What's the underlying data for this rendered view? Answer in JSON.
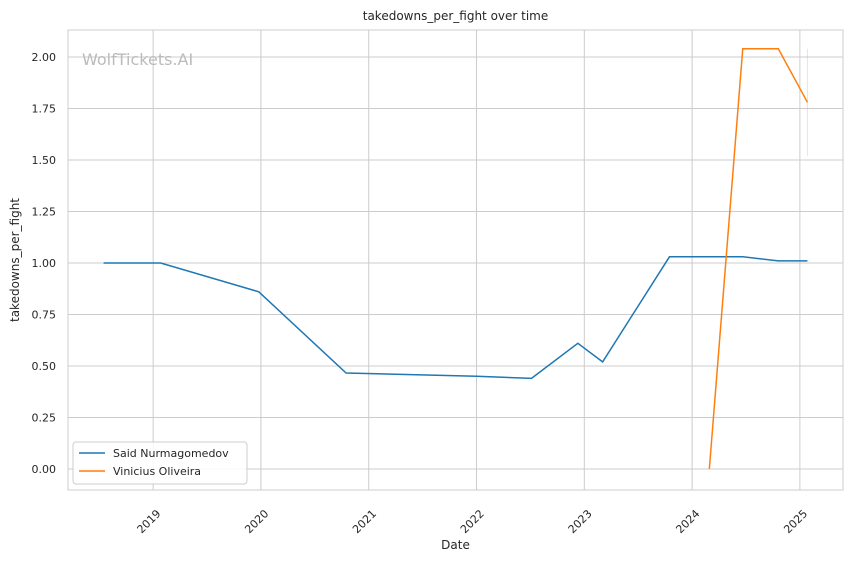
{
  "chart_data": {
    "type": "line",
    "title": "takedowns_per_fight over time",
    "xlabel": "Date",
    "ylabel": "takedowns_per_fight",
    "watermark": "WolfTickets.AI",
    "xlim": [
      2018.21,
      2025.4
    ],
    "ylim": [
      -0.102,
      2.131
    ],
    "grid": true,
    "legend_position": "lower-left",
    "x_ticks": [
      2019,
      2020,
      2021,
      2022,
      2023,
      2024,
      2025
    ],
    "x_tick_labels": [
      "2019",
      "2020",
      "2021",
      "2022",
      "2023",
      "2024",
      "2025"
    ],
    "y_ticks": [
      0,
      0.25,
      0.5,
      0.75,
      1.0,
      1.25,
      1.5,
      1.75,
      2.0
    ],
    "y_tick_labels": [
      "0.00",
      "0.25",
      "0.50",
      "0.75",
      "1.00",
      "1.25",
      "1.50",
      "1.75",
      "2.00"
    ],
    "series": [
      {
        "name": "Said Nurmagomedov",
        "color": "#1f77b4",
        "x": [
          2018.54,
          2019.07,
          2019.98,
          2020.79,
          2022.0,
          2022.51,
          2022.94,
          2023.17,
          2023.79,
          2024.47,
          2024.8,
          2025.07
        ],
        "y": [
          1.0,
          1.0,
          0.86,
          0.466,
          0.45,
          0.44,
          0.61,
          0.52,
          1.03,
          1.03,
          1.01,
          1.01
        ]
      },
      {
        "name": "Vinicius Oliveira",
        "color": "#ff7f0e",
        "x": [
          2024.16,
          2024.47,
          2024.8,
          2025.07
        ],
        "y": [
          0.0,
          2.04,
          2.04,
          1.78
        ],
        "band": {
          "x": 2025.07,
          "low": 1.52,
          "high": 2.04
        }
      }
    ]
  }
}
